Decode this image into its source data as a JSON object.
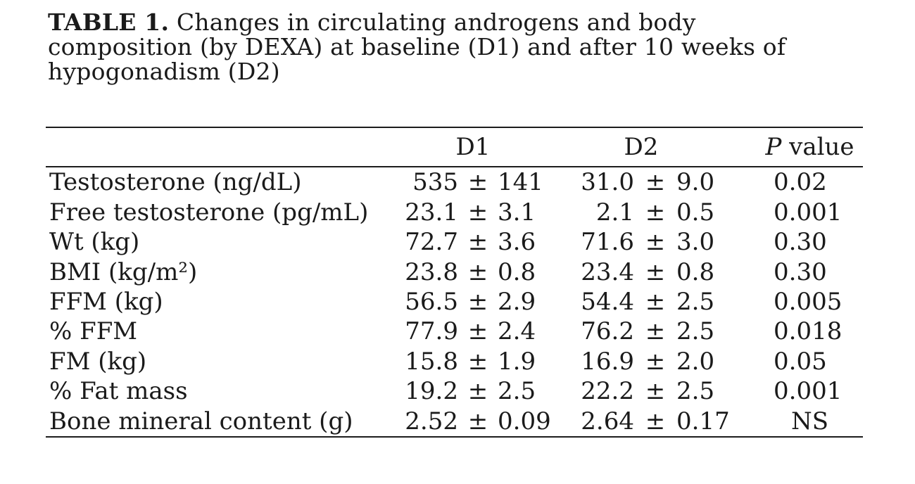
{
  "caption": {
    "label": "TABLE 1.",
    "line1": "Changes in circulating androgens and body",
    "line2": "composition (by DEXA) at baseline (D1) and after 10 weeks of",
    "line3": "hypogonadism (D2)"
  },
  "table": {
    "pm_symbol": "±",
    "columns": {
      "d1": "D1",
      "d2": "D2",
      "p_italic": "P",
      "p_rest": "value"
    },
    "rows": [
      {
        "label": "Testosterone (ng/dL)",
        "d1v": "535",
        "d1e": "141",
        "d2v": "31.0",
        "d2e": "9.0",
        "p": "0.02"
      },
      {
        "label": "Free testosterone (pg/mL)",
        "d1v": "23.1",
        "d1e": "3.1",
        "d2v": "2.1",
        "d2e": "0.5",
        "p": "0.001"
      },
      {
        "label": "Wt (kg)",
        "d1v": "72.7",
        "d1e": "3.6",
        "d2v": "71.6",
        "d2e": "3.0",
        "p": "0.30"
      },
      {
        "label": "BMI (kg/m²)",
        "d1v": "23.8",
        "d1e": "0.8",
        "d2v": "23.4",
        "d2e": "0.8",
        "p": "0.30"
      },
      {
        "label": "FFM (kg)",
        "d1v": "56.5",
        "d1e": "2.9",
        "d2v": "54.4",
        "d2e": "2.5",
        "p": "0.005"
      },
      {
        "label": "% FFM",
        "d1v": "77.9",
        "d1e": "2.4",
        "d2v": "76.2",
        "d2e": "2.5",
        "p": "0.018"
      },
      {
        "label": "FM (kg)",
        "d1v": "15.8",
        "d1e": "1.9",
        "d2v": "16.9",
        "d2e": "2.0",
        "p": "0.05"
      },
      {
        "label": "% Fat mass",
        "d1v": "19.2",
        "d1e": "2.5",
        "d2v": "22.2",
        "d2e": "2.5",
        "p": "0.001"
      },
      {
        "label": "Bone mineral content (g)",
        "d1v": "2.52",
        "d1e": "0.09",
        "d2v": "2.64",
        "d2e": "0.17",
        "p": "NS"
      }
    ]
  },
  "colors": {
    "text": "#1a1a1a",
    "rule": "#1c1c1c",
    "background": "#ffffff"
  }
}
